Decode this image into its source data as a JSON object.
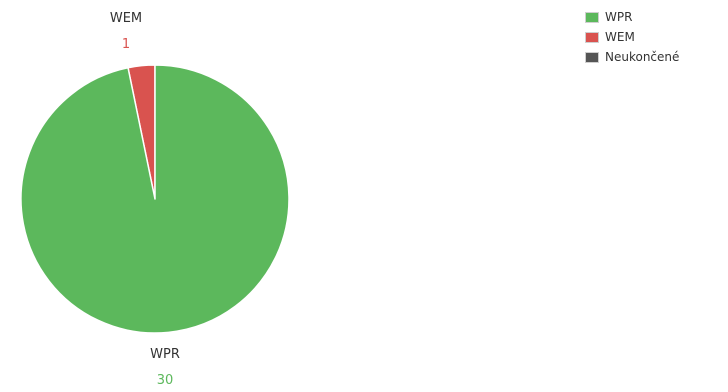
{
  "chart_data": {
    "type": "pie",
    "title": "",
    "slices": [
      {
        "label": "WPR",
        "value": 30,
        "color": "#5cb85c"
      },
      {
        "label": "WEM",
        "value": 1,
        "color": "#d9534f"
      },
      {
        "label": "Neukončené",
        "value": 0,
        "color": "#555555"
      }
    ],
    "legend_position": "top-right"
  }
}
